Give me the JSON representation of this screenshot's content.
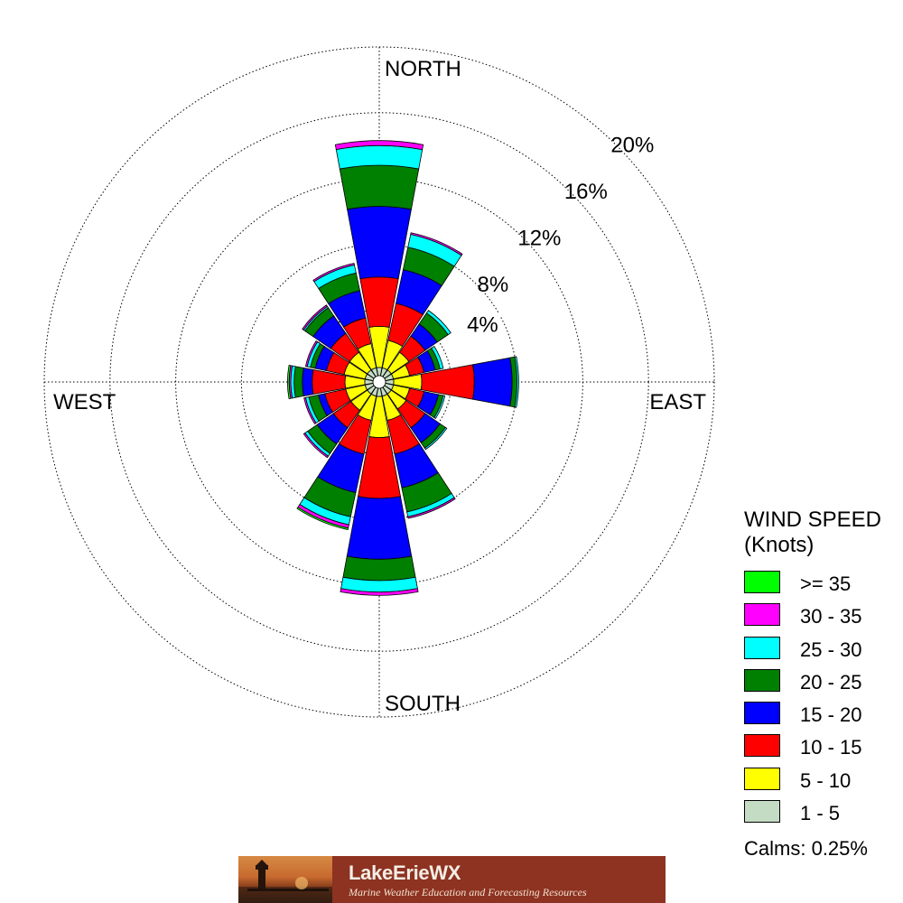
{
  "chart_data": {
    "type": "wind-rose",
    "directions": [
      "N",
      "NNE",
      "NE",
      "ENE",
      "E",
      "ESE",
      "SE",
      "SSE",
      "S",
      "SSW",
      "SW",
      "WSW",
      "W",
      "WNW",
      "NW",
      "NNW"
    ],
    "compass_labels": {
      "north": "NORTH",
      "east": "EAST",
      "south": "SOUTH",
      "west": "WEST"
    },
    "radial_ticks": [
      4,
      8,
      12,
      16,
      20
    ],
    "radial_tick_labels": [
      "4%",
      "8%",
      "12%",
      "16%",
      "20%"
    ],
    "radial_max": 20,
    "grid": true,
    "bins": [
      {
        "label": "1 - 5",
        "color": "#c4dcc4"
      },
      {
        "label": "5 - 10",
        "color": "#ffff00"
      },
      {
        "label": "10 - 15",
        "color": "#ff0000"
      },
      {
        "label": "15 - 20",
        "color": "#0000ff"
      },
      {
        "label": "20 - 25",
        "color": "#008000"
      },
      {
        "label": "25 - 30",
        "color": "#00ffff"
      },
      {
        "label": "30 - 35",
        "color": "#ff00ff"
      },
      {
        "label": ">= 35",
        "color": "#00ff00"
      }
    ],
    "cumulative_percent": {
      "N": [
        0.5,
        3.0,
        6.0,
        10.3,
        12.8,
        14.0,
        14.3,
        14.3
      ],
      "NNE": [
        0.5,
        2.2,
        4.5,
        6.6,
        8.0,
        8.8,
        8.9,
        8.9
      ],
      "NE": [
        0.5,
        1.8,
        3.0,
        3.9,
        4.7,
        4.9,
        4.9,
        4.9
      ],
      "ENE": [
        0.5,
        1.5,
        2.4,
        3.1,
        3.4,
        3.6,
        3.6,
        3.6
      ],
      "E": [
        0.5,
        2.2,
        5.4,
        7.7,
        8.0,
        8.1,
        8.1,
        8.1
      ],
      "ESE": [
        0.5,
        1.5,
        2.4,
        3.3,
        3.6,
        3.7,
        3.7,
        3.7
      ],
      "SE": [
        0.5,
        1.6,
        3.0,
        4.1,
        4.5,
        4.6,
        4.6,
        4.6
      ],
      "SSE": [
        0.5,
        2.0,
        4.1,
        6.2,
        7.7,
        8.0,
        8.1,
        8.1
      ],
      "S": [
        0.5,
        3.0,
        6.7,
        10.4,
        11.7,
        12.4,
        12.6,
        12.6
      ],
      "SSW": [
        0.5,
        2.0,
        4.1,
        6.5,
        8.0,
        8.5,
        8.7,
        8.8
      ],
      "SW": [
        0.5,
        1.7,
        3.0,
        4.2,
        4.9,
        5.1,
        5.2,
        5.2
      ],
      "WSW": [
        0.5,
        1.7,
        3.0,
        3.4,
        4.0,
        4.2,
        4.3,
        4.3
      ],
      "W": [
        0.5,
        1.7,
        3.7,
        4.3,
        4.8,
        5.0,
        5.1,
        5.2
      ],
      "WNW": [
        0.5,
        1.8,
        2.9,
        3.6,
        3.9,
        4.1,
        4.2,
        4.2
      ],
      "NW": [
        0.5,
        1.8,
        3.2,
        4.5,
        5.1,
        5.2,
        5.3,
        5.3
      ],
      "NNW": [
        0.5,
        2.0,
        3.6,
        5.3,
        6.4,
        6.9,
        7.0,
        7.0
      ]
    }
  },
  "legend": {
    "title_line1": "WIND SPEED",
    "title_line2": "(Knots)",
    "items": [
      {
        "label": ">= 35",
        "color": "#00ff00"
      },
      {
        "label": "30 - 35",
        "color": "#ff00ff"
      },
      {
        "label": "25 - 30",
        "color": "#00ffff"
      },
      {
        "label": "20 - 25",
        "color": "#008000"
      },
      {
        "label": "15 - 20",
        "color": "#0000ff"
      },
      {
        "label": "10 - 15",
        "color": "#ff0000"
      },
      {
        "label": "5 - 10",
        "color": "#ffff00"
      },
      {
        "label": "1 - 5",
        "color": "#c4dcc4"
      }
    ]
  },
  "calms": {
    "label": "Calms:",
    "value": "0.25%"
  },
  "banner": {
    "title": "LakeErieWX",
    "subtitle": "Marine Weather Education and Forecasting Resources"
  }
}
